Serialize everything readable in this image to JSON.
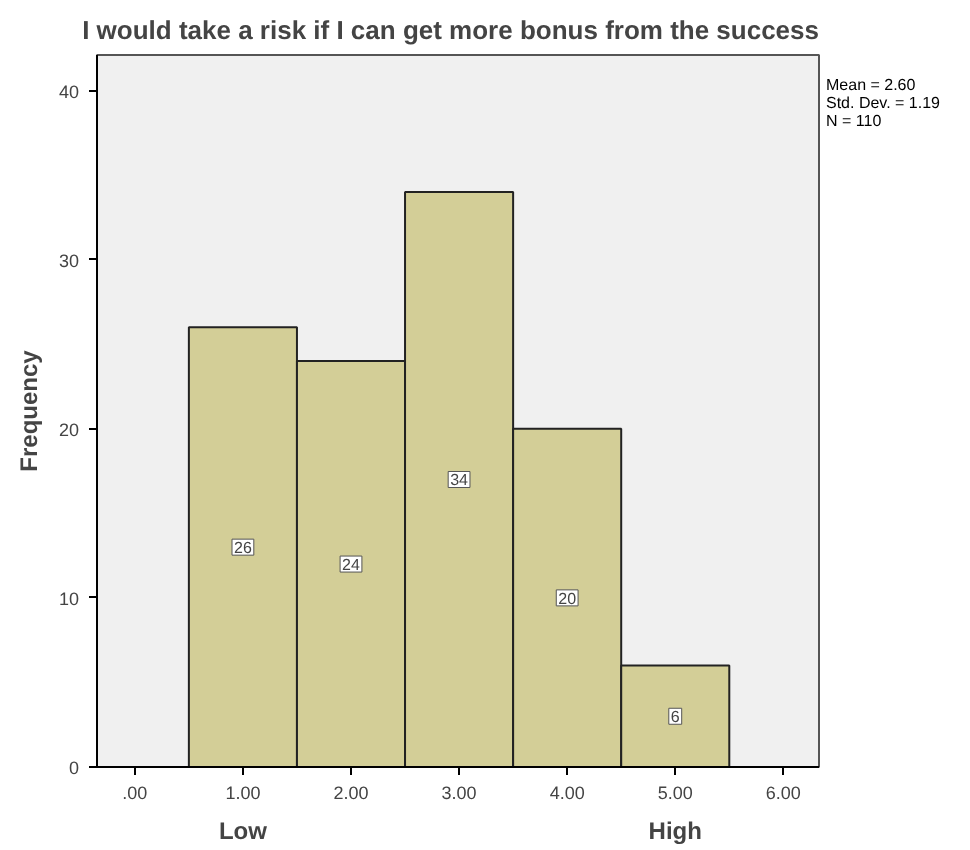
{
  "chart_data": {
    "type": "histogram",
    "title": "I would take a risk if I can get more bonus from the success",
    "ylabel": "Frequency",
    "bins": [
      0.5,
      1.5,
      2.5,
      3.5,
      4.5,
      5.5
    ],
    "values": [
      26,
      24,
      34,
      20,
      6
    ],
    "color": "#d3ce97",
    "data_labels": true,
    "xlim": [
      -0.35,
      6.33
    ],
    "ylim": [
      0,
      42.1
    ],
    "xticks": [
      {
        "value": 0,
        "label": ".00"
      },
      {
        "value": 1,
        "label": "1.00"
      },
      {
        "value": 2,
        "label": "2.00"
      },
      {
        "value": 3,
        "label": "3.00"
      },
      {
        "value": 4,
        "label": "4.00"
      },
      {
        "value": 5,
        "label": "5.00"
      },
      {
        "value": 6,
        "label": "6.00"
      }
    ],
    "yticks": [
      0,
      10,
      20,
      30,
      40
    ],
    "grid": false,
    "annotations": [
      "Low",
      "High",
      "Mean = 2.60",
      "Std. Dev. = 1.19",
      "N = 110"
    ]
  }
}
